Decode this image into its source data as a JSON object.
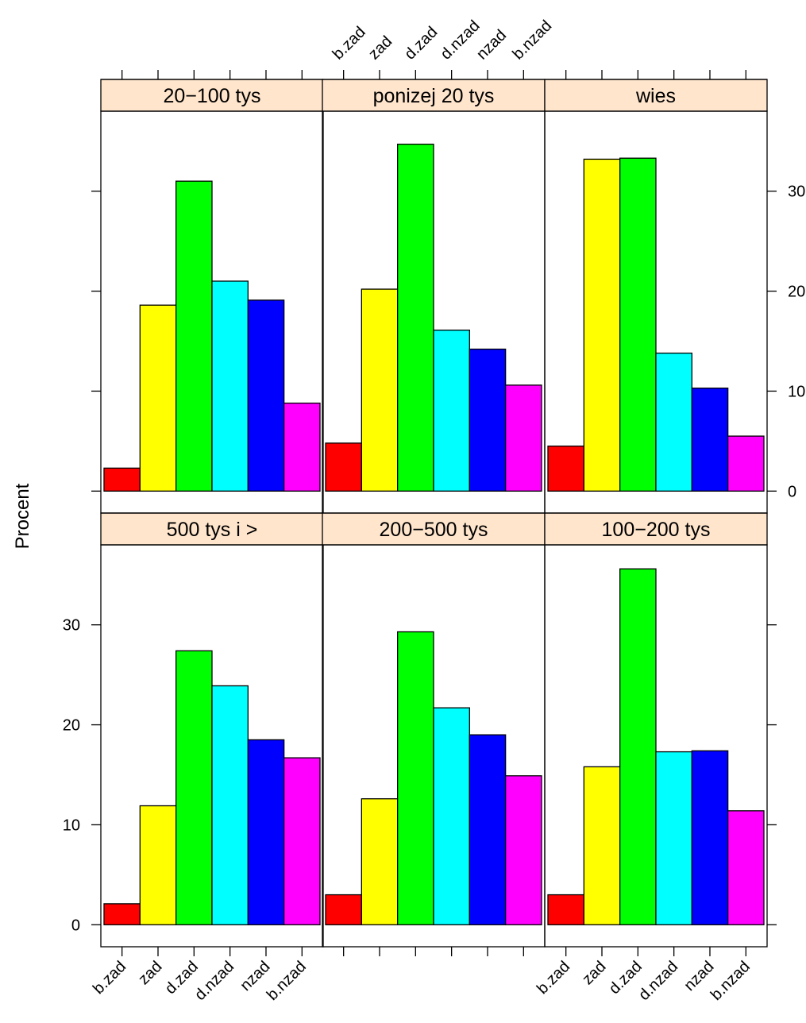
{
  "chart_data": {
    "type": "bar",
    "layout": "trellis 3 columns x 2 rows",
    "ylabel": "Procent",
    "ylim": [
      -2.2,
      38.0
    ],
    "yticks": [
      0,
      10,
      20,
      30
    ],
    "categories": [
      "b.zad",
      "zad",
      "d.zad",
      "d.nzad",
      "nzad",
      "b.nzad"
    ],
    "colors": [
      "#FF0000",
      "#FFFF00",
      "#00FF00",
      "#00FFFF",
      "#0000FF",
      "#FF00FF"
    ],
    "strip_color": "#FFE5CC",
    "panels": [
      {
        "title": "20−100 tys",
        "values": [
          2.3,
          18.6,
          31.0,
          21.0,
          19.1,
          8.8
        ]
      },
      {
        "title": "ponizej 20 tys",
        "values": [
          4.8,
          20.2,
          34.7,
          16.1,
          14.2,
          10.6
        ]
      },
      {
        "title": "wies",
        "values": [
          4.5,
          33.2,
          33.3,
          13.8,
          10.3,
          5.5
        ]
      },
      {
        "title": "500 tys i >",
        "values": [
          2.1,
          11.9,
          27.4,
          23.9,
          18.5,
          16.7
        ]
      },
      {
        "title": "200−500 tys",
        "values": [
          3.0,
          12.6,
          29.3,
          21.7,
          19.0,
          14.9
        ]
      },
      {
        "title": "100−200 tys",
        "values": [
          3.0,
          15.8,
          35.6,
          17.3,
          17.4,
          11.4
        ]
      }
    ]
  }
}
